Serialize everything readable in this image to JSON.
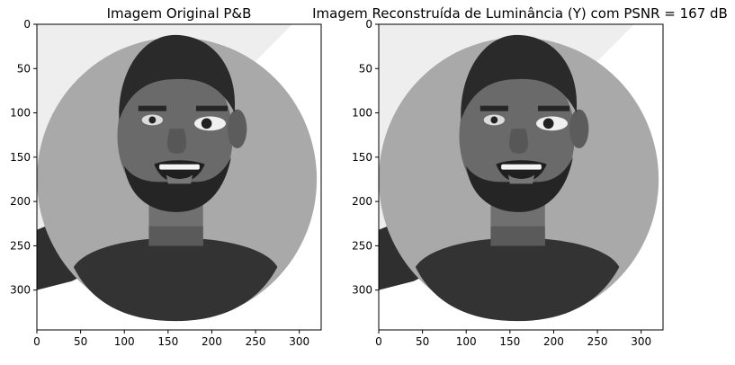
{
  "chart_data": [
    {
      "type": "image",
      "title": "Imagem Original P&B",
      "xlim": [
        0,
        325
      ],
      "ylim": [
        345,
        0
      ],
      "xticks": [
        0,
        50,
        100,
        150,
        200,
        250,
        300
      ],
      "yticks": [
        0,
        50,
        100,
        150,
        200,
        250,
        300
      ],
      "colormap": "gray"
    },
    {
      "type": "image",
      "title": "Imagem Reconstruída de Luminância (Y) com PSNR = 167 dB",
      "xlim": [
        0,
        325
      ],
      "ylim": [
        345,
        0
      ],
      "xticks": [
        0,
        50,
        100,
        150,
        200,
        250,
        300
      ],
      "yticks": [
        0,
        50,
        100,
        150,
        200,
        250,
        300
      ],
      "colormap": "gray"
    }
  ]
}
